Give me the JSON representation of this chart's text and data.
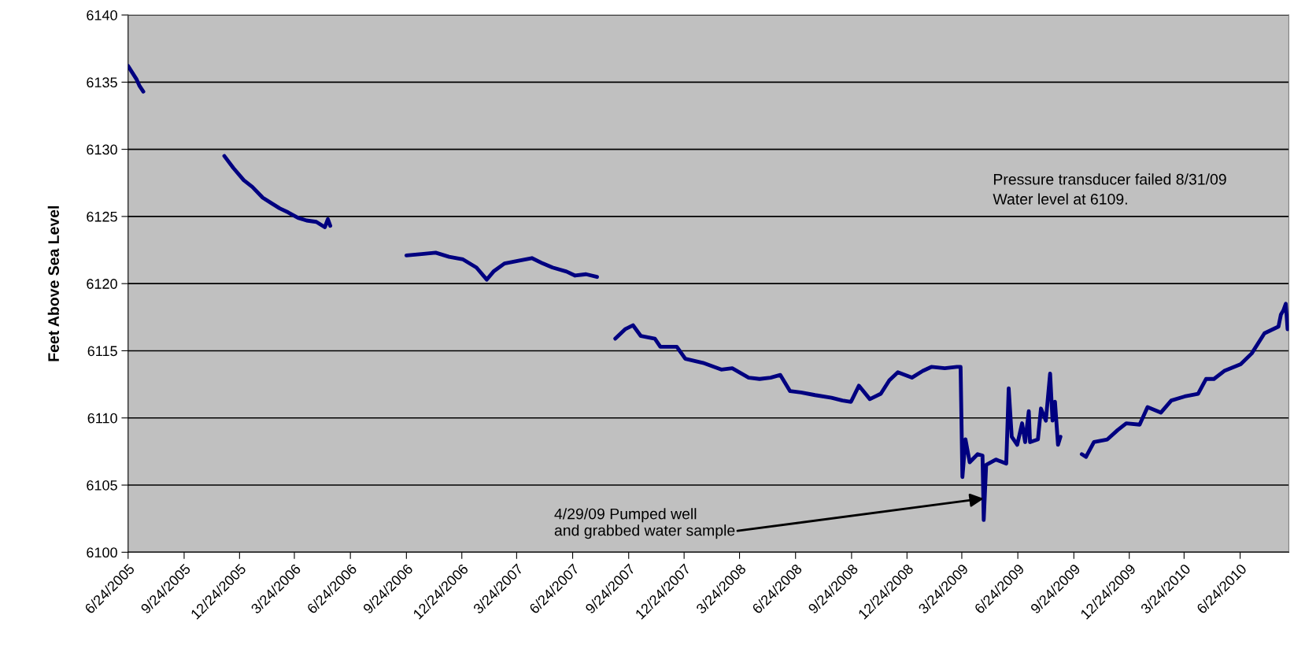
{
  "chart_data": {
    "type": "line",
    "ylabel": "Feet Above Sea Level",
    "x": [
      "2005-06-24",
      "2005-07-01",
      "2005-07-08",
      "2005-07-13",
      "2005-07-19",
      "2005-09-15",
      "2005-11-29",
      "2005-12-14",
      "2005-12-31",
      "2006-01-14",
      "2006-01-31",
      "2006-02-14",
      "2006-02-28",
      "2006-03-14",
      "2006-03-30",
      "2006-04-13",
      "2006-04-29",
      "2006-05-13",
      "2006-05-18",
      "2006-05-22",
      "2006-07-20",
      "2006-09-24",
      "2006-10-19",
      "2006-11-11",
      "2006-12-03",
      "2006-12-26",
      "2007-01-17",
      "2007-02-03",
      "2007-02-14",
      "2007-03-04",
      "2007-03-27",
      "2007-04-18",
      "2007-05-06",
      "2007-05-22",
      "2007-06-14",
      "2007-06-28",
      "2007-07-16",
      "2007-08-03",
      "2007-08-18",
      "2007-09-02",
      "2007-09-18",
      "2007-10-01",
      "2007-10-14",
      "2007-11-06",
      "2007-11-15",
      "2007-12-12",
      "2007-12-26",
      "2008-01-24",
      "2008-02-23",
      "2008-03-12",
      "2008-04-08",
      "2008-04-26",
      "2008-05-14",
      "2008-05-30",
      "2008-06-15",
      "2008-07-03",
      "2008-07-26",
      "2008-08-22",
      "2008-09-09",
      "2008-09-23",
      "2008-10-06",
      "2008-10-24",
      "2008-11-11",
      "2008-11-25",
      "2008-12-09",
      "2009-01-01",
      "2009-01-19",
      "2009-02-02",
      "2009-02-24",
      "2009-03-16",
      "2009-03-22",
      "2009-03-25",
      "2009-03-30",
      "2009-04-06",
      "2009-04-19",
      "2009-04-27",
      "2009-04-29",
      "2009-05-03",
      "2009-05-19",
      "2009-06-05",
      "2009-06-09",
      "2009-06-14",
      "2009-06-23",
      "2009-07-01",
      "2009-07-06",
      "2009-07-12",
      "2009-07-14",
      "2009-07-27",
      "2009-08-01",
      "2009-08-09",
      "2009-08-16",
      "2009-08-20",
      "2009-08-24",
      "2009-08-29",
      "2009-09-02",
      "2009-09-20",
      "2009-10-07",
      "2009-10-14",
      "2009-10-27",
      "2009-11-18",
      "2009-12-05",
      "2009-12-19",
      "2010-01-10",
      "2010-01-23",
      "2010-02-14",
      "2010-03-03",
      "2010-03-25",
      "2010-04-16",
      "2010-04-29",
      "2010-05-12",
      "2010-05-29",
      "2010-06-25",
      "2010-07-13",
      "2010-08-03",
      "2010-08-26",
      "2010-08-30",
      "2010-09-03",
      "2010-09-07",
      "2010-09-10"
    ],
    "series": [
      {
        "color": "#000080",
        "values": [
          6136.2,
          6135.7,
          6135.2,
          6134.7,
          6134.3,
          null,
          6129.5,
          6128.6,
          6127.7,
          6127.2,
          6126.4,
          6126.0,
          6125.6,
          6125.3,
          6124.9,
          6124.7,
          6124.6,
          6124.2,
          6124.8,
          6124.3,
          null,
          6122.1,
          6122.2,
          6122.3,
          6122.0,
          6121.8,
          6121.2,
          6120.3,
          6120.9,
          6121.5,
          6121.7,
          6121.9,
          6121.5,
          6121.2,
          6120.9,
          6120.6,
          6120.7,
          6120.5,
          null,
          6115.9,
          6116.6,
          6116.9,
          6116.1,
          6115.9,
          6115.3,
          6115.3,
          6114.4,
          6114.1,
          6113.6,
          6113.7,
          6113.0,
          6112.9,
          6113.0,
          6113.2,
          6112.0,
          6111.9,
          6111.7,
          6111.5,
          6111.3,
          6111.2,
          6112.4,
          6111.4,
          6111.8,
          6112.8,
          6113.4,
          6113.0,
          6113.5,
          6113.8,
          6113.7,
          6113.8,
          6113.8,
          6105.6,
          6108.4,
          6106.7,
          6107.3,
          6107.2,
          6102.4,
          6106.5,
          6106.9,
          6106.6,
          6112.2,
          6108.6,
          6108.0,
          6109.6,
          6108.2,
          6110.5,
          6108.2,
          6108.4,
          6110.7,
          6109.8,
          6113.3,
          6109.8,
          6111.2,
          6108.0,
          6108.6,
          null,
          6107.3,
          6107.1,
          6108.2,
          6108.4,
          6109.1,
          6109.6,
          6109.5,
          6110.8,
          6110.4,
          6111.3,
          6111.6,
          6111.8,
          6112.9,
          6112.9,
          6113.5,
          6114.0,
          6114.8,
          6116.3,
          6116.8,
          6117.7,
          6118.0,
          6118.5,
          6116.6
        ]
      }
    ],
    "xlim": [
      "2005-06-24",
      "2010-09-12"
    ],
    "xticks": [
      {
        "value": "2005-06-24",
        "label": "6/24/2005"
      },
      {
        "value": "2005-09-24",
        "label": "9/24/2005"
      },
      {
        "value": "2005-12-24",
        "label": "12/24/2005"
      },
      {
        "value": "2006-03-24",
        "label": "3/24/2006"
      },
      {
        "value": "2006-06-24",
        "label": "6/24/2006"
      },
      {
        "value": "2006-09-24",
        "label": "9/24/2006"
      },
      {
        "value": "2006-12-24",
        "label": "12/24/2006"
      },
      {
        "value": "2007-03-24",
        "label": "3/24/2007"
      },
      {
        "value": "2007-06-24",
        "label": "6/24/2007"
      },
      {
        "value": "2007-09-24",
        "label": "9/24/2007"
      },
      {
        "value": "2007-12-24",
        "label": "12/24/2007"
      },
      {
        "value": "2008-03-24",
        "label": "3/24/2008"
      },
      {
        "value": "2008-06-24",
        "label": "6/24/2008"
      },
      {
        "value": "2008-09-24",
        "label": "9/24/2008"
      },
      {
        "value": "2008-12-24",
        "label": "12/24/2008"
      },
      {
        "value": "2009-03-24",
        "label": "3/24/2009"
      },
      {
        "value": "2009-06-24",
        "label": "6/24/2009"
      },
      {
        "value": "2009-09-24",
        "label": "9/24/2009"
      },
      {
        "value": "2009-12-24",
        "label": "12/24/2009"
      },
      {
        "value": "2010-03-24",
        "label": "3/24/2010"
      },
      {
        "value": "2010-06-24",
        "label": "6/24/2010"
      }
    ],
    "ylim": [
      6100,
      6140
    ],
    "yticks": [
      6100,
      6105,
      6110,
      6115,
      6120,
      6125,
      6130,
      6135,
      6140
    ],
    "grid": "y",
    "marker": "none",
    "line_style": "solid",
    "annotations": [
      "Pressure transducer failed 8/31/09\nWater level at 6109.",
      {
        "text": "4/29/09 Pumped well\nand grabbed water sample",
        "x": "2009-04-29",
        "y": 6104
      }
    ]
  }
}
